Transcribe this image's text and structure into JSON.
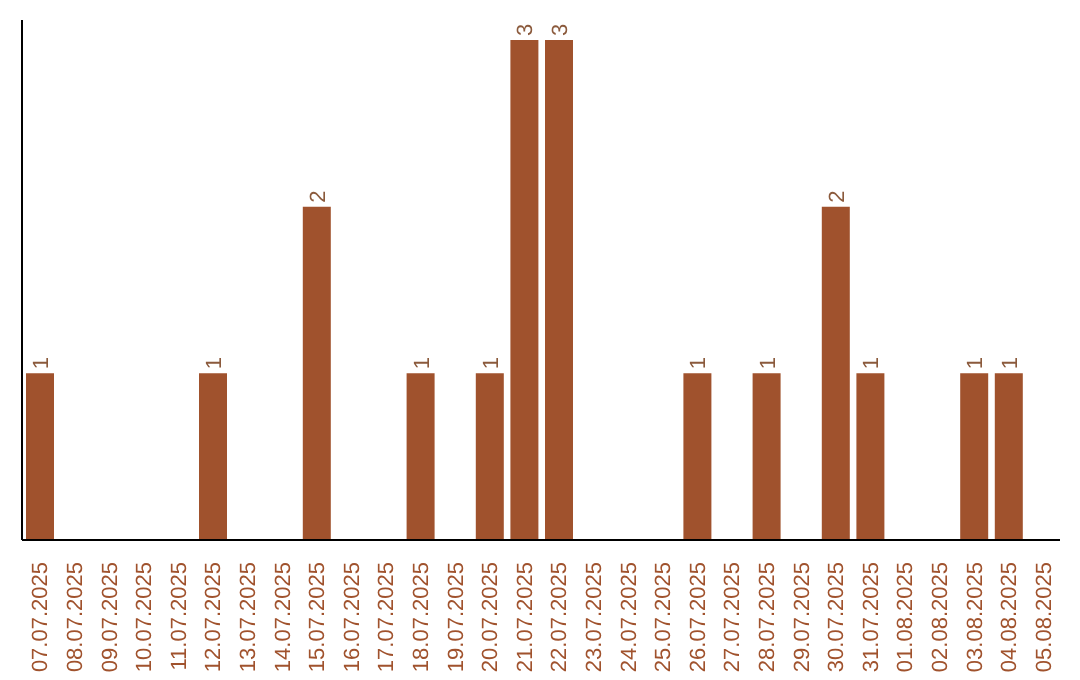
{
  "chart_data": {
    "type": "bar",
    "categories": [
      "07.07.2025",
      "08.07.2025",
      "09.07.2025",
      "10.07.2025",
      "11.07.2025",
      "12.07.2025",
      "13.07.2025",
      "14.07.2025",
      "15.07.2025",
      "16.07.2025",
      "17.07.2025",
      "18.07.2025",
      "19.07.2025",
      "20.07.2025",
      "21.07.2025",
      "22.07.2025",
      "23.07.2025",
      "24.07.2025",
      "25.07.2025",
      "26.07.2025",
      "27.07.2025",
      "28.07.2025",
      "29.07.2025",
      "30.07.2025",
      "31.07.2025",
      "01.08.2025",
      "02.08.2025",
      "03.08.2025",
      "04.08.2025",
      "05.08.2025"
    ],
    "values": [
      1,
      0,
      0,
      0,
      0,
      1,
      0,
      0,
      2,
      0,
      0,
      1,
      0,
      1,
      3,
      3,
      0,
      0,
      0,
      1,
      0,
      1,
      0,
      2,
      1,
      0,
      0,
      1,
      1,
      0
    ],
    "value_labels": [
      "1",
      null,
      null,
      null,
      null,
      "1",
      null,
      null,
      "2",
      null,
      null,
      "1",
      null,
      "1",
      "3",
      "3",
      null,
      null,
      null,
      "1",
      null,
      "1",
      null,
      "2",
      "1",
      null,
      null,
      "1",
      "1",
      null
    ],
    "color": "#a0522d",
    "grid": false,
    "legend": false
  }
}
